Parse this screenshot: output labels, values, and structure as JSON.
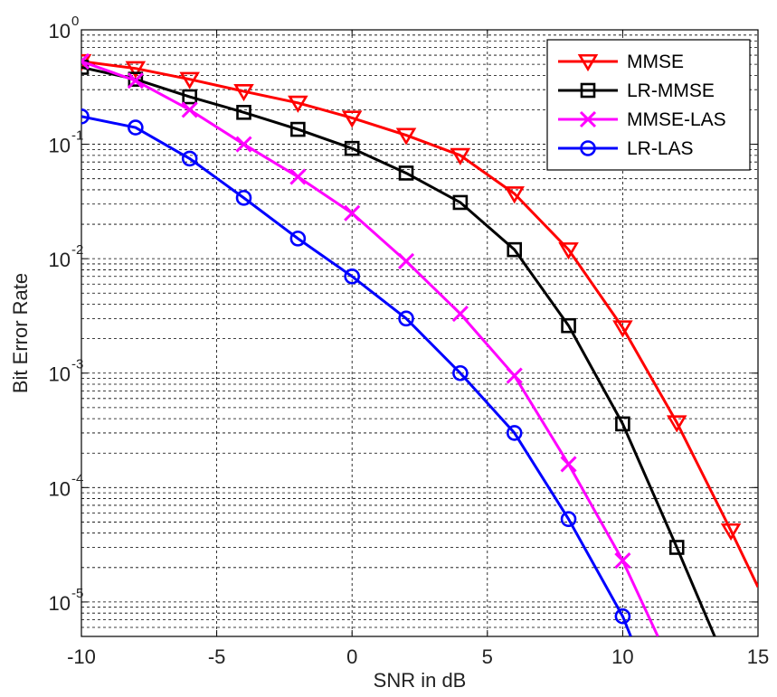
{
  "chart_data": {
    "type": "line",
    "xlabel": "SNR in dB",
    "ylabel": "Bit Error Rate",
    "xlim": [
      -10,
      15
    ],
    "ylim": [
      5e-06,
      1
    ],
    "yscale": "log",
    "grid": true,
    "legend_position": "top-right",
    "x_ticks": [
      -10,
      -5,
      0,
      5,
      10,
      15
    ],
    "x_tick_labels": [
      "-10",
      "-5",
      "0",
      "5",
      "10",
      "15"
    ],
    "y_ticks": [
      {
        "value": 1,
        "base": "10",
        "exp": "0"
      },
      {
        "value": 0.1,
        "base": "10",
        "exp": "-1"
      },
      {
        "value": 0.01,
        "base": "10",
        "exp": "-2"
      },
      {
        "value": 0.001,
        "base": "10",
        "exp": "-3"
      },
      {
        "value": 0.0001,
        "base": "10",
        "exp": "-4"
      },
      {
        "value": 1e-05,
        "base": "10",
        "exp": "-5"
      }
    ],
    "series": [
      {
        "name": "MMSE",
        "color": "#ff0000",
        "marker": "triangle-down",
        "x": [
          -10,
          -8,
          -6,
          -4,
          -2,
          0,
          2,
          4,
          6,
          8,
          10,
          12,
          14,
          15
        ],
        "y": [
          0.53,
          0.46,
          0.37,
          0.29,
          0.23,
          0.17,
          0.12,
          0.08,
          0.037,
          0.012,
          0.0025,
          0.00037,
          4.2e-05,
          1.35e-05
        ],
        "marker_mask": [
          true,
          true,
          true,
          true,
          true,
          true,
          true,
          true,
          true,
          true,
          true,
          true,
          true,
          false
        ]
      },
      {
        "name": "LR-MMSE",
        "color": "#000000",
        "marker": "square",
        "x": [
          -10,
          -8,
          -6,
          -4,
          -2,
          0,
          2,
          4,
          6,
          8,
          10,
          12,
          13.4
        ],
        "y": [
          0.47,
          0.37,
          0.26,
          0.19,
          0.135,
          0.092,
          0.056,
          0.031,
          0.012,
          0.0026,
          0.00036,
          3e-05,
          5e-06
        ],
        "marker_mask": [
          true,
          true,
          true,
          true,
          true,
          true,
          true,
          true,
          true,
          true,
          true,
          true,
          false
        ]
      },
      {
        "name": "MMSE-LAS",
        "color": "#ff00ff",
        "marker": "x",
        "x": [
          -10,
          -8,
          -6,
          -4,
          -2,
          0,
          2,
          4,
          6,
          8,
          10,
          11.3
        ],
        "y": [
          0.53,
          0.36,
          0.2,
          0.1,
          0.052,
          0.025,
          0.0095,
          0.0033,
          0.00095,
          0.00016,
          2.3e-05,
          5e-06
        ],
        "marker_mask": [
          true,
          true,
          true,
          true,
          true,
          true,
          true,
          true,
          true,
          true,
          true,
          false
        ]
      },
      {
        "name": "LR-LAS",
        "color": "#0000ff",
        "marker": "circle",
        "x": [
          -10,
          -8,
          -6,
          -4,
          -2,
          0,
          2,
          4,
          6,
          8,
          10,
          10.3
        ],
        "y": [
          0.175,
          0.14,
          0.075,
          0.034,
          0.015,
          0.007,
          0.003,
          0.001,
          0.0003,
          5.3e-05,
          7.5e-06,
          5e-06
        ],
        "marker_mask": [
          true,
          true,
          true,
          true,
          true,
          true,
          true,
          true,
          true,
          true,
          true,
          false
        ]
      }
    ]
  }
}
